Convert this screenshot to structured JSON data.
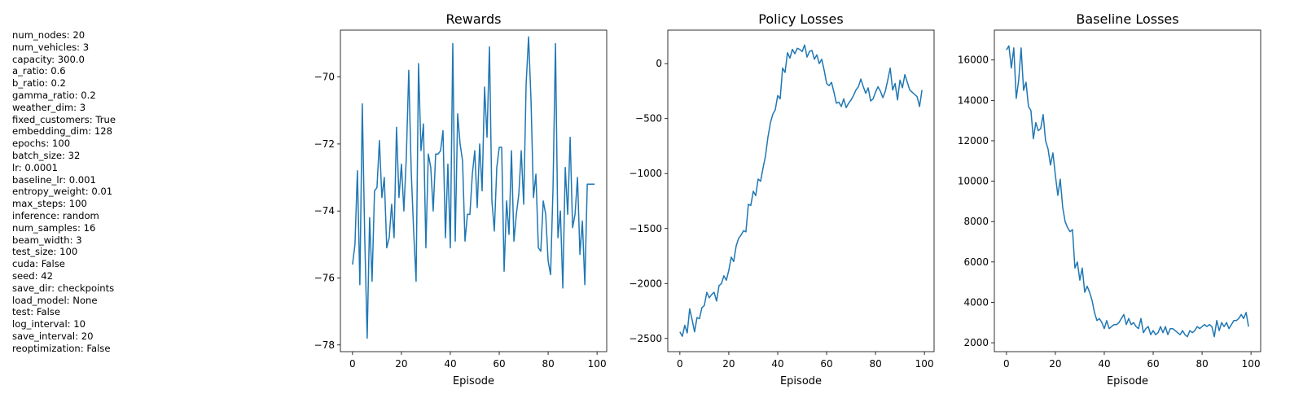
{
  "params": [
    "num_nodes: 20",
    "num_vehicles: 3",
    "capacity: 300.0",
    "a_ratio: 0.6",
    "b_ratio: 0.2",
    "gamma_ratio: 0.2",
    "weather_dim: 3",
    "fixed_customers: True",
    "embedding_dim: 128",
    "epochs: 100",
    "batch_size: 32",
    "lr: 0.0001",
    "baseline_lr: 0.001",
    "entropy_weight: 0.01",
    "max_steps: 100",
    "inference: random",
    "num_samples: 16",
    "beam_width: 3",
    "test_size: 100",
    "cuda: False",
    "seed: 42",
    "save_dir: checkpoints",
    "load_model: None",
    "test: False",
    "log_interval: 10",
    "save_interval: 20",
    "reoptimization: False"
  ],
  "line_color": "#1f77b4",
  "chart_data": [
    {
      "type": "line",
      "title": "Rewards",
      "xlabel": "Episode",
      "ylabel": "",
      "xlim": [
        -4.95,
        103.95
      ],
      "ylim": [
        -78.2,
        -68.6
      ],
      "xticks": [
        0,
        20,
        40,
        60,
        80,
        100
      ],
      "yticks": [
        -78,
        -76,
        -74,
        -72,
        -70
      ],
      "x": [
        0,
        1,
        2,
        3,
        4,
        5,
        6,
        7,
        8,
        9,
        10,
        11,
        12,
        13,
        14,
        15,
        16,
        17,
        18,
        19,
        20,
        21,
        22,
        23,
        24,
        25,
        26,
        27,
        28,
        29,
        30,
        31,
        32,
        33,
        34,
        35,
        36,
        37,
        38,
        39,
        40,
        41,
        42,
        43,
        44,
        45,
        46,
        47,
        48,
        49,
        50,
        51,
        52,
        53,
        54,
        55,
        56,
        57,
        58,
        59,
        60,
        61,
        62,
        63,
        64,
        65,
        66,
        67,
        68,
        69,
        70,
        71,
        72,
        73,
        74,
        75,
        76,
        77,
        78,
        79,
        80,
        81,
        82,
        83,
        84,
        85,
        86,
        87,
        88,
        89,
        90,
        91,
        92,
        93,
        94,
        95,
        96,
        97,
        98,
        99
      ],
      "values": [
        -75.6,
        -75.0,
        -72.8,
        -76.2,
        -70.8,
        -74.8,
        -77.8,
        -74.2,
        -76.1,
        -73.4,
        -73.3,
        -71.9,
        -73.6,
        -73.0,
        -75.1,
        -74.8,
        -73.8,
        -74.8,
        -71.5,
        -73.6,
        -72.6,
        -74.0,
        -72.4,
        -69.8,
        -72.8,
        -74.6,
        -76.1,
        -69.6,
        -72.2,
        -71.4,
        -75.1,
        -72.3,
        -72.7,
        -74.0,
        -72.3,
        -72.3,
        -72.2,
        -71.6,
        -74.8,
        -72.6,
        -75.1,
        -69.0,
        -74.9,
        -71.1,
        -72.0,
        -72.5,
        -74.9,
        -74.1,
        -74.1,
        -72.9,
        -72.2,
        -73.9,
        -72.0,
        -73.4,
        -70.3,
        -71.8,
        -69.1,
        -73.7,
        -74.6,
        -72.7,
        -72.1,
        -72.1,
        -75.8,
        -73.7,
        -74.7,
        -72.2,
        -74.9,
        -74.1,
        -73.5,
        -72.2,
        -73.8,
        -70.2,
        -68.8,
        -70.7,
        -73.6,
        -72.9,
        -75.1,
        -75.2,
        -73.7,
        -74.1,
        -75.5,
        -75.9,
        -73.3,
        -69.0,
        -74.8,
        -74.0,
        -76.3,
        -72.7,
        -74.1,
        -71.8,
        -74.5,
        -74.1,
        -73.0,
        -75.3,
        -74.3,
        -76.2,
        -73.2,
        -73.2,
        -73.2,
        -73.2
      ]
    },
    {
      "type": "line",
      "title": "Policy Losses",
      "xlabel": "Episode",
      "ylabel": "",
      "xlim": [
        -4.95,
        103.95
      ],
      "ylim": [
        -2620,
        305
      ],
      "xticks": [
        0,
        20,
        40,
        60,
        80,
        100
      ],
      "yticks": [
        -2500,
        -2000,
        -1500,
        -1000,
        -500,
        0
      ],
      "x": [
        0,
        1,
        2,
        3,
        4,
        5,
        6,
        7,
        8,
        9,
        10,
        11,
        12,
        13,
        14,
        15,
        16,
        17,
        18,
        19,
        20,
        21,
        22,
        23,
        24,
        25,
        26,
        27,
        28,
        29,
        30,
        31,
        32,
        33,
        34,
        35,
        36,
        37,
        38,
        39,
        40,
        41,
        42,
        43,
        44,
        45,
        46,
        47,
        48,
        49,
        50,
        51,
        52,
        53,
        54,
        55,
        56,
        57,
        58,
        59,
        60,
        61,
        62,
        63,
        64,
        65,
        66,
        67,
        68,
        69,
        70,
        71,
        72,
        73,
        74,
        75,
        76,
        77,
        78,
        79,
        80,
        81,
        82,
        83,
        84,
        85,
        86,
        87,
        88,
        89,
        90,
        91,
        92,
        93,
        94,
        95,
        96,
        97,
        98,
        99
      ],
      "values": [
        -2440,
        -2480,
        -2380,
        -2450,
        -2230,
        -2330,
        -2440,
        -2310,
        -2320,
        -2220,
        -2200,
        -2080,
        -2130,
        -2100,
        -2080,
        -2160,
        -2020,
        -2000,
        -1930,
        -1970,
        -1880,
        -1760,
        -1800,
        -1660,
        -1590,
        -1560,
        -1520,
        -1530,
        -1280,
        -1290,
        -1160,
        -1200,
        -1050,
        -1070,
        -950,
        -840,
        -670,
        -540,
        -460,
        -420,
        -290,
        -320,
        -40,
        -80,
        100,
        50,
        130,
        90,
        140,
        130,
        110,
        170,
        60,
        110,
        120,
        40,
        80,
        0,
        40,
        -60,
        -180,
        -200,
        -170,
        -260,
        -360,
        -350,
        -390,
        -320,
        -400,
        -360,
        -330,
        -290,
        -240,
        -210,
        -140,
        -210,
        -270,
        -220,
        -340,
        -320,
        -260,
        -210,
        -250,
        -310,
        -250,
        -150,
        -40,
        -240,
        -180,
        -330,
        -150,
        -220,
        -100,
        -170,
        -240,
        -260,
        -280,
        -300,
        -390,
        -240
      ]
    },
    {
      "type": "line",
      "title": "Baseline Losses",
      "xlabel": "Episode",
      "ylabel": "",
      "xlim": [
        -4.95,
        103.95
      ],
      "ylim": [
        1560,
        17480
      ],
      "xticks": [
        0,
        20,
        40,
        60,
        80,
        100
      ],
      "yticks": [
        2000,
        4000,
        6000,
        8000,
        10000,
        12000,
        14000,
        16000
      ],
      "x": [
        0,
        1,
        2,
        3,
        4,
        5,
        6,
        7,
        8,
        9,
        10,
        11,
        12,
        13,
        14,
        15,
        16,
        17,
        18,
        19,
        20,
        21,
        22,
        23,
        24,
        25,
        26,
        27,
        28,
        29,
        30,
        31,
        32,
        33,
        34,
        35,
        36,
        37,
        38,
        39,
        40,
        41,
        42,
        43,
        44,
        45,
        46,
        47,
        48,
        49,
        50,
        51,
        52,
        53,
        54,
        55,
        56,
        57,
        58,
        59,
        60,
        61,
        62,
        63,
        64,
        65,
        66,
        67,
        68,
        69,
        70,
        71,
        72,
        73,
        74,
        75,
        76,
        77,
        78,
        79,
        80,
        81,
        82,
        83,
        84,
        85,
        86,
        87,
        88,
        89,
        90,
        91,
        92,
        93,
        94,
        95,
        96,
        97,
        98,
        99
      ],
      "values": [
        16500,
        16700,
        15600,
        16600,
        14100,
        15000,
        16600,
        14500,
        14900,
        13700,
        13500,
        12100,
        12900,
        12500,
        12600,
        13300,
        12000,
        11600,
        10800,
        11400,
        10300,
        9300,
        10100,
        8700,
        8000,
        7700,
        7500,
        7600,
        5700,
        6000,
        5100,
        5700,
        4500,
        4800,
        4500,
        4100,
        3500,
        3100,
        3200,
        3000,
        2700,
        3100,
        2700,
        2800,
        2900,
        2900,
        3000,
        3200,
        3400,
        2900,
        3200,
        2900,
        3000,
        2800,
        2700,
        3200,
        2500,
        2700,
        2800,
        2400,
        2600,
        2400,
        2500,
        2800,
        2500,
        2800,
        2400,
        2700,
        2700,
        2600,
        2500,
        2400,
        2600,
        2400,
        2300,
        2600,
        2500,
        2600,
        2800,
        2700,
        2800,
        2900,
        2800,
        2900,
        2800,
        2300,
        3100,
        2600,
        3000,
        2800,
        3000,
        2700,
        2900,
        3100,
        3100,
        3200,
        3400,
        3200,
        3500,
        2800
      ]
    }
  ]
}
